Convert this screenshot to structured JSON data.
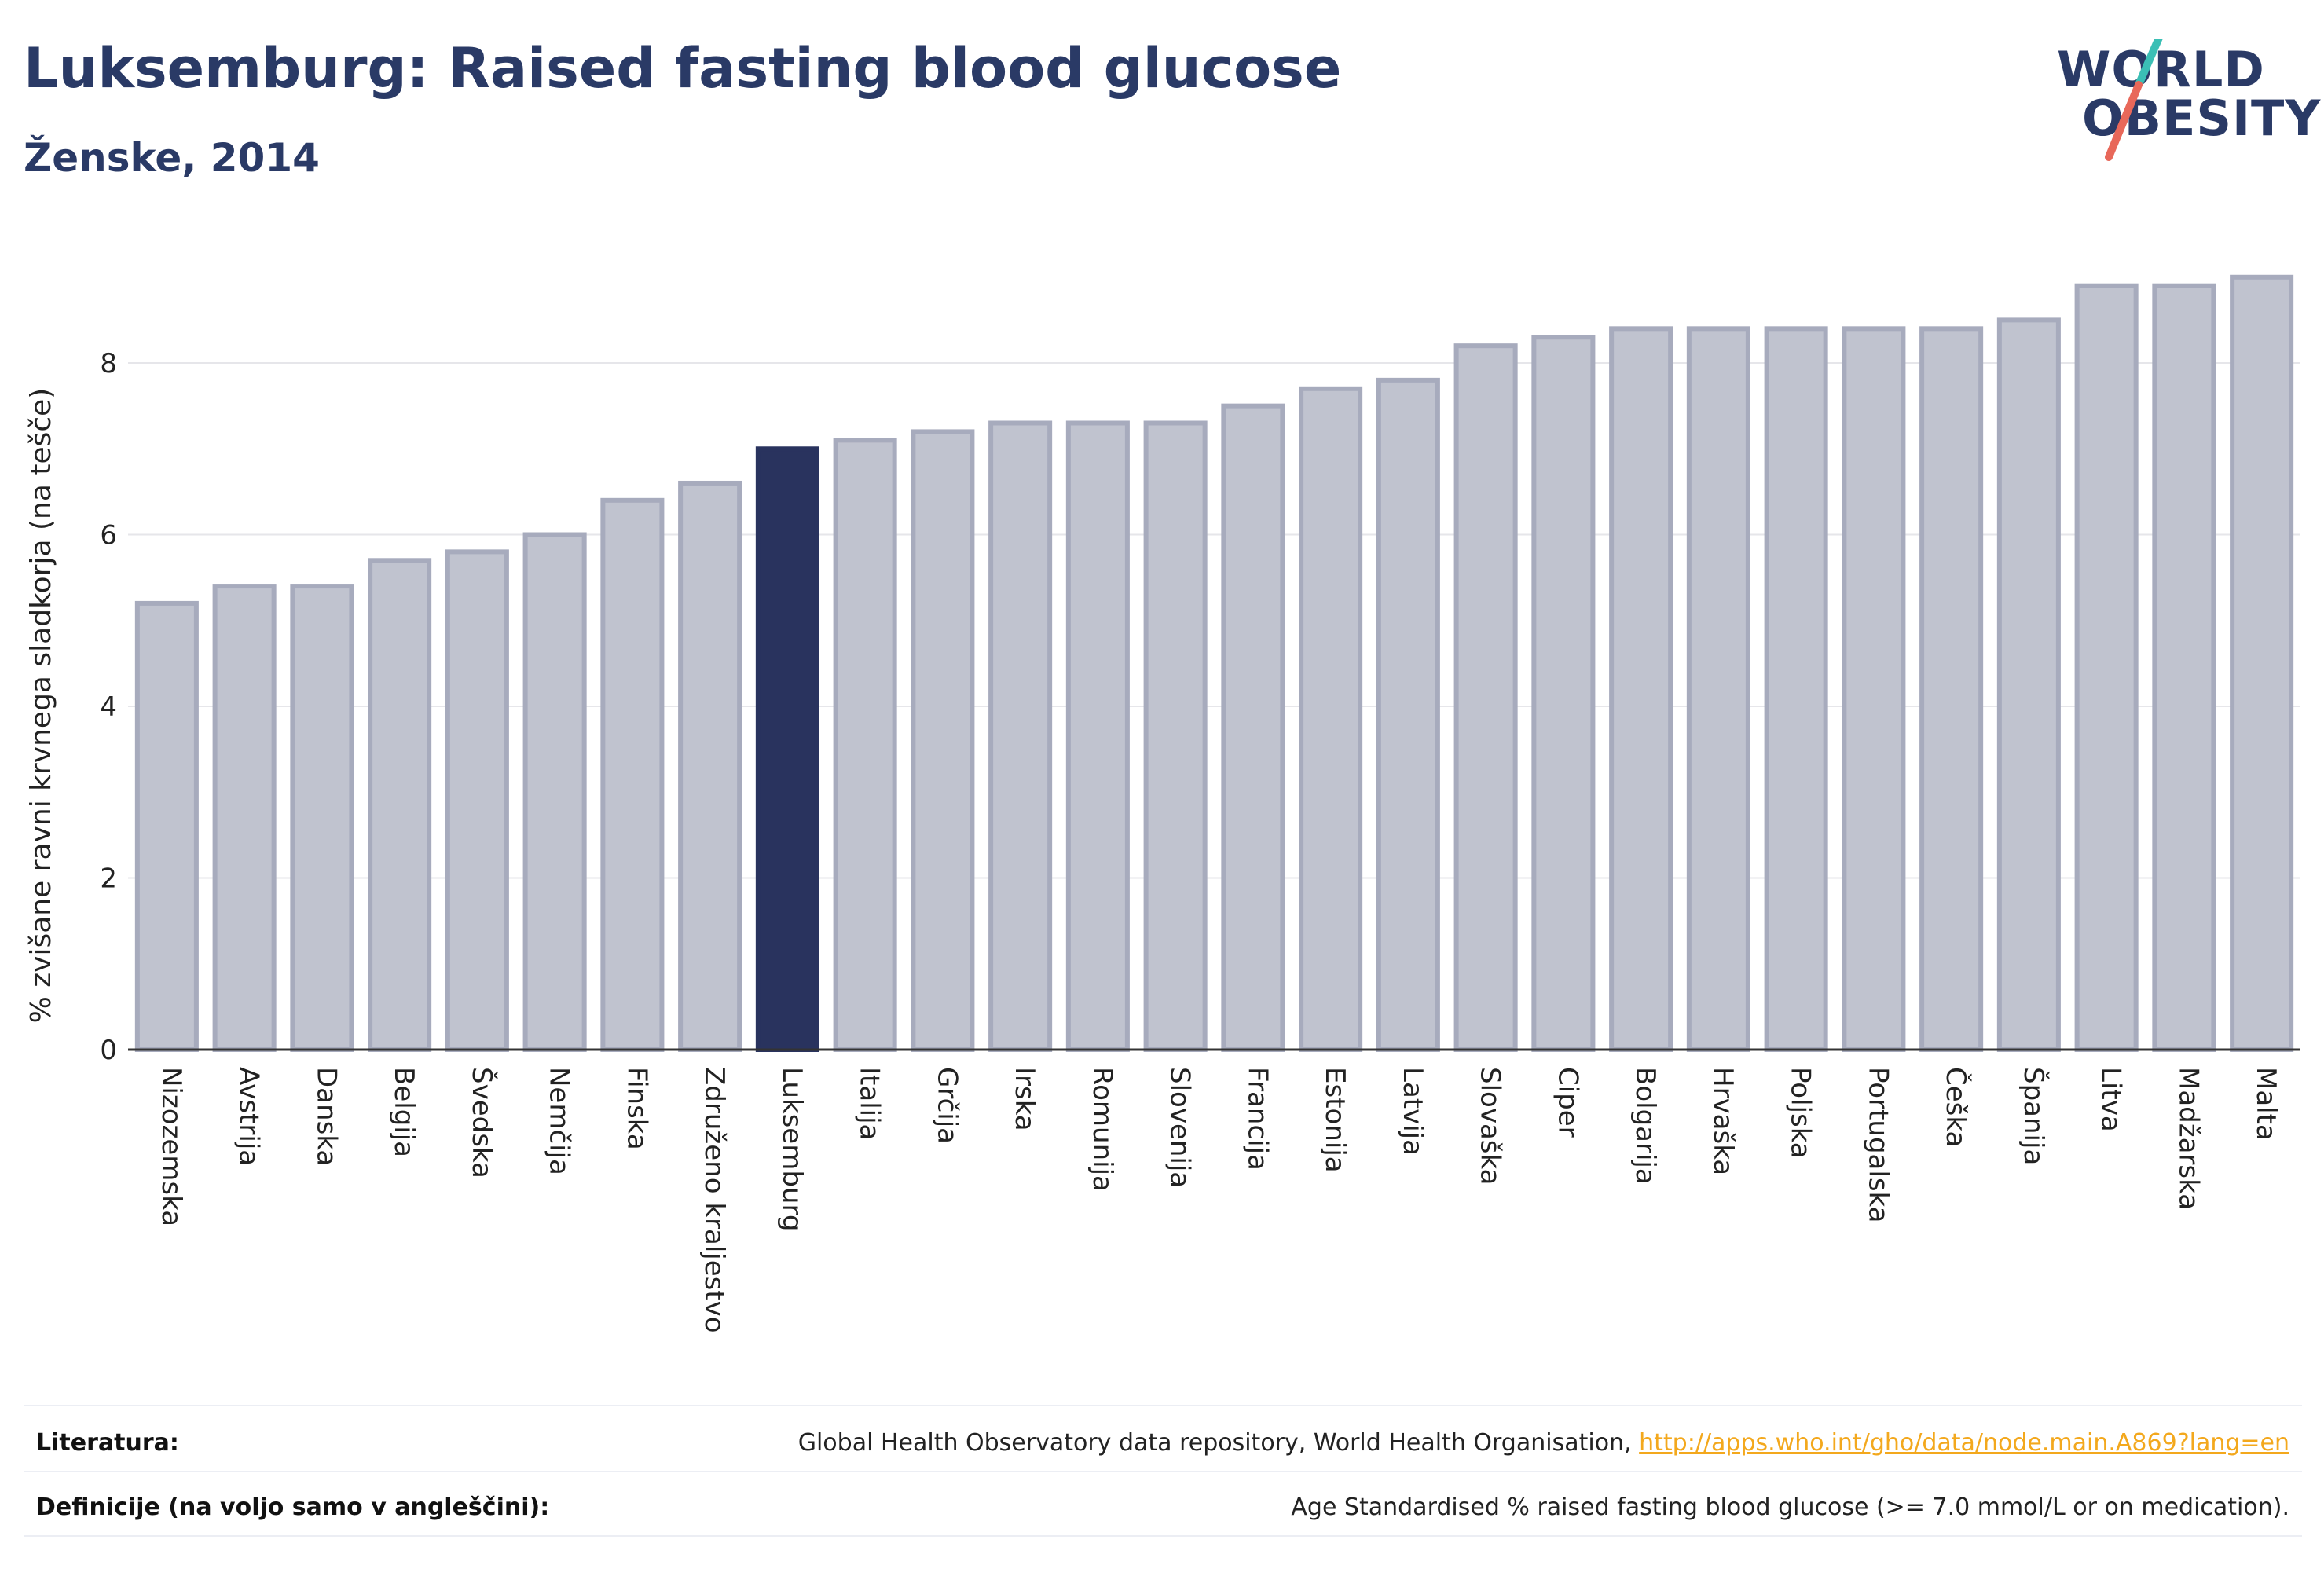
{
  "header": {
    "title": "Luksemburg: Raised fasting blood glucose",
    "subtitle": "Ženske, 2014"
  },
  "logo": {
    "line1": "WORLD",
    "line2": "OBESITY",
    "colors": {
      "text": "#2a3a66",
      "slash_top": "#3bbfb5",
      "slash_bottom": "#e8685a"
    }
  },
  "colors": {
    "bar_default": "#c0c3cf",
    "bar_default_border": "#a7abbd",
    "bar_highlight": "#29335e",
    "grid": "#e6e6ea",
    "axis": "#333333"
  },
  "chart_data": {
    "type": "bar",
    "title": "Luksemburg: Raised fasting blood glucose",
    "subtitle": "Ženske, 2014",
    "xlabel": "",
    "ylabel": "% zvišane ravni krvnega sladkorja (na tešče)",
    "ylim": [
      0,
      9.3
    ],
    "yticks": [
      0,
      2,
      4,
      6,
      8
    ],
    "grid": true,
    "highlight": "Luksemburg",
    "categories": [
      "Nizozemska",
      "Avstrija",
      "Danska",
      "Belgija",
      "Švedska",
      "Nemčija",
      "Finska",
      "Združeno kraljestvo",
      "Luksemburg",
      "Italija",
      "Grčija",
      "Irska",
      "Romunija",
      "Slovenija",
      "Francija",
      "Estonija",
      "Latvija",
      "Slovaška",
      "Ciper",
      "Bolgarija",
      "Hrvaška",
      "Poljska",
      "Portugalska",
      "Češka",
      "Španija",
      "Litva",
      "Madžarska",
      "Malta"
    ],
    "values": [
      5.2,
      5.4,
      5.4,
      5.7,
      5.8,
      6.0,
      6.4,
      6.6,
      7.0,
      7.1,
      7.2,
      7.3,
      7.3,
      7.3,
      7.5,
      7.7,
      7.8,
      8.2,
      8.3,
      8.4,
      8.4,
      8.4,
      8.4,
      8.4,
      8.5,
      8.9,
      8.9,
      9.0
    ]
  },
  "footer": {
    "references_label": "Literatura:",
    "references_text": "Global Health Observatory data repository, World Health Organisation, ",
    "references_link": "http://apps.who.int/gho/data/node.main.A869?lang=en",
    "definitions_label": "Definicije (na voljo samo v angleščini):",
    "definitions_text": "Age Standardised % raised fasting blood glucose (>= 7.0 mmol/L or on medication)."
  }
}
